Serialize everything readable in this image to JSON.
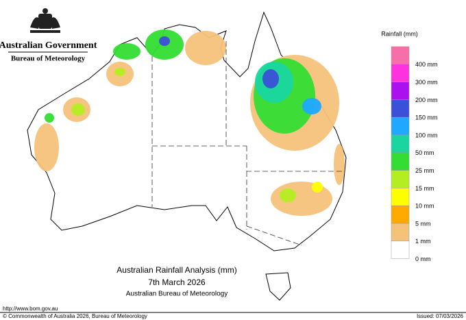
{
  "header": {
    "government": "Australian Government",
    "agency": "Bureau of Meteorology"
  },
  "map": {
    "title": "Australian Rainfall Analysis (mm)",
    "date": "7th March 2026",
    "source": "Australian Bureau of Meteorology"
  },
  "legend": {
    "title": "Rainfall (mm)",
    "items": [
      {
        "label": "400 mm",
        "color": "#f76fa8"
      },
      {
        "label": "300 mm",
        "color": "#ff33dd"
      },
      {
        "label": "200 mm",
        "color": "#aa11ee"
      },
      {
        "label": "150 mm",
        "color": "#3b4fd8"
      },
      {
        "label": "100 mm",
        "color": "#1ea8ff"
      },
      {
        "label": "50 mm",
        "color": "#19d6a0"
      },
      {
        "label": "25 mm",
        "color": "#33dd33"
      },
      {
        "label": "15 mm",
        "color": "#b4ee22"
      },
      {
        "label": "10 mm",
        "color": "#ffff00"
      },
      {
        "label": "5 mm",
        "color": "#ffaa00"
      },
      {
        "label": "1 mm",
        "color": "#f5c27a"
      },
      {
        "label": "0 mm",
        "color": "#ffffff"
      }
    ]
  },
  "footer": {
    "url": "http://www.bom.gov.au",
    "copyright": "© Commonwealth of Australia 2026, Bureau of Meteorology",
    "issued": "Issued: 07/03/2026"
  }
}
